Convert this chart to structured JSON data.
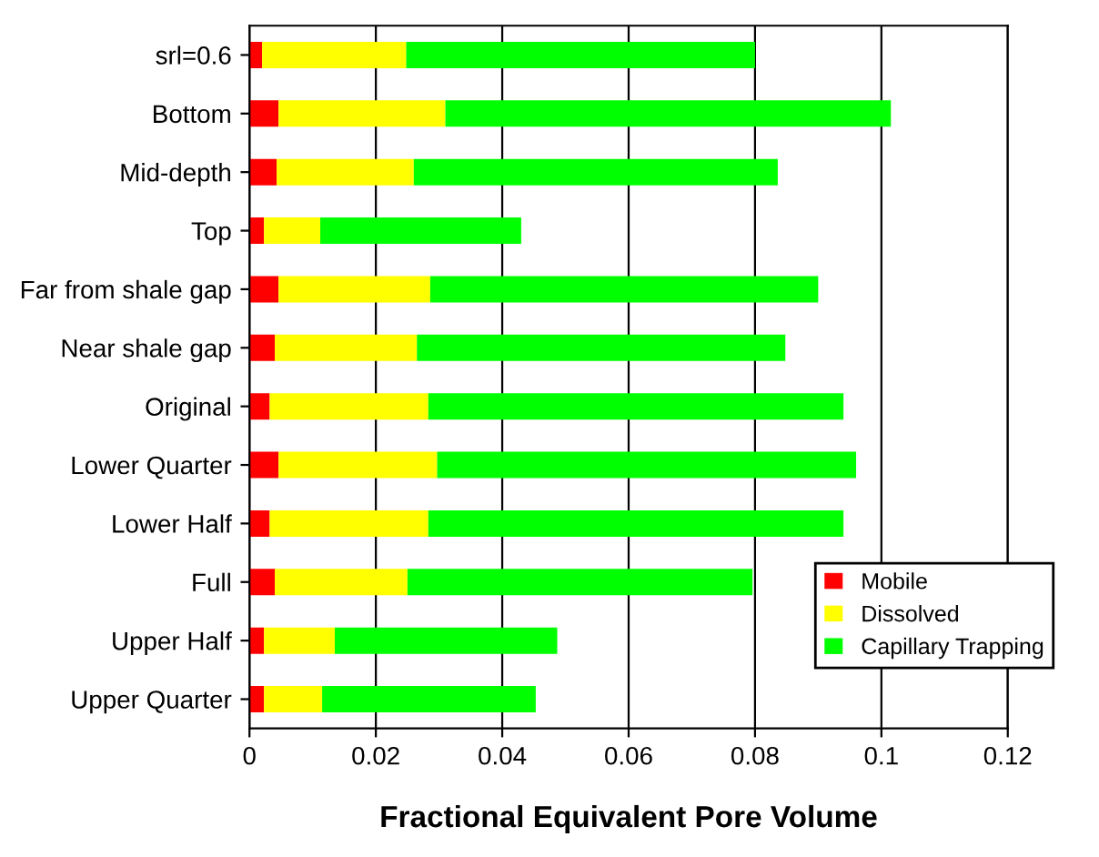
{
  "chart_data": {
    "type": "bar",
    "orientation": "horizontal",
    "stacked": true,
    "xlabel": "Fractional Equivalent Pore Volume",
    "categories": [
      "srl=0.6",
      "Bottom",
      "Mid-depth",
      "Top",
      "Far from shale gap",
      "Near shale gap",
      "Original",
      "Lower Quarter",
      "Lower Half",
      "Full",
      "Upper Half",
      "Upper Quarter"
    ],
    "series": [
      {
        "name": "Mobile",
        "color": "#ff0000",
        "values": [
          0.002,
          0.0046,
          0.0043,
          0.0023,
          0.0046,
          0.004,
          0.0032,
          0.0046,
          0.0032,
          0.004,
          0.0023,
          0.0023
        ]
      },
      {
        "name": "Dissolved",
        "color": "#ffff00",
        "values": [
          0.0228,
          0.0264,
          0.0217,
          0.0089,
          0.024,
          0.0225,
          0.0251,
          0.0251,
          0.0251,
          0.021,
          0.0112,
          0.0092
        ]
      },
      {
        "name": "Capillary Trapping",
        "color": "#00ff00",
        "values": [
          0.0552,
          0.0705,
          0.0576,
          0.0318,
          0.0614,
          0.0583,
          0.0657,
          0.0663,
          0.0657,
          0.0546,
          0.0352,
          0.0338
        ]
      }
    ],
    "xlim": [
      0,
      0.12
    ],
    "xticks": [
      0,
      0.02,
      0.04,
      0.06,
      0.08,
      0.1,
      0.12
    ],
    "grid": "x",
    "legend": "bottom right"
  }
}
